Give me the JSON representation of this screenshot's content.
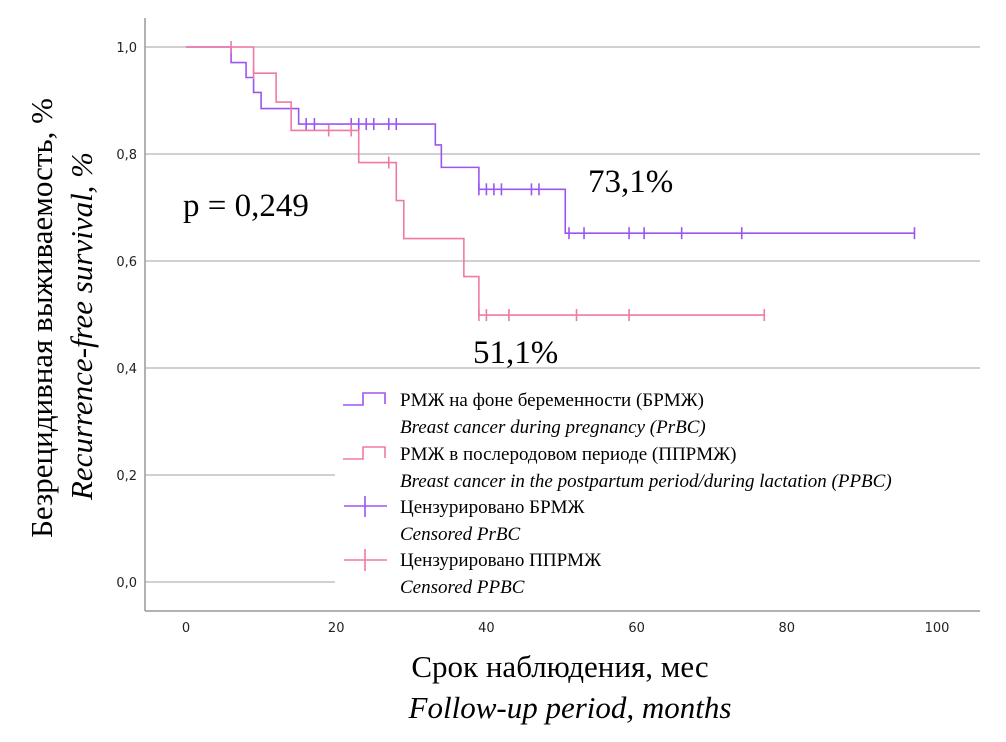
{
  "chart_data": {
    "type": "line",
    "subtype": "kaplan-meier step",
    "xlabel": "Срок наблюдения, мес",
    "xlabel_en": "Follow-up period, months",
    "ylabel": "Безрецидивная выживаемость, %",
    "ylabel_en": "Recurrence-free survival, %",
    "xlim": [
      -5,
      105
    ],
    "ylim": [
      -0.05,
      1.05
    ],
    "x_ticks": [
      0,
      20,
      40,
      60,
      80,
      100
    ],
    "x_tick_labels": [
      "0",
      "20",
      "40",
      "60",
      "80",
      "100"
    ],
    "y_ticks": [
      0,
      0.2,
      0.4,
      0.6,
      0.8,
      1.0
    ],
    "y_tick_labels": [
      "0,0",
      "0,2",
      "0,4",
      "0,6",
      "0,8",
      "1,0"
    ],
    "grid": "horizontal",
    "legend_position": "bottom-center",
    "annotations": {
      "p_value": "p = 0,249",
      "prbc_label": "73,1%",
      "ppbc_label": "51,1%"
    },
    "series": [
      {
        "name": "РМЖ на фоне беременности (БРМЖ)",
        "name_en": "Breast cancer during pregnancy (PrBC)",
        "censor_name": "Цензурировано БРМЖ",
        "censor_name_en": "Censored PrBC",
        "color": "#9d55f2",
        "steps": [
          [
            0,
            1.0
          ],
          [
            6,
            0.971
          ],
          [
            8,
            0.943
          ],
          [
            9,
            0.915
          ],
          [
            10,
            0.885
          ],
          [
            15,
            0.856
          ],
          [
            33.2,
            0.817
          ],
          [
            34,
            0.775
          ],
          [
            39,
            0.734
          ],
          [
            50.5,
            0.652
          ]
        ],
        "end": 97,
        "censored": [
          16,
          17.1,
          22,
          23,
          24,
          25,
          27,
          28,
          39,
          40,
          41,
          42,
          46,
          47,
          51,
          53,
          59,
          61,
          66,
          74,
          97
        ]
      },
      {
        "name": "РМЖ в послеродовом периоде (ППРМЖ)",
        "name_en": "Breast cancer in the postpartum period/during lactation (PPBC)",
        "censor_name": "Цензурировано ППРМЖ",
        "censor_name_en": "Censored PPBC",
        "color": "#f07aa5",
        "steps": [
          [
            0,
            1.0
          ],
          [
            9,
            0.951
          ],
          [
            12,
            0.897
          ],
          [
            14,
            0.844
          ],
          [
            23,
            0.784
          ],
          [
            28,
            0.713
          ],
          [
            29,
            0.642
          ],
          [
            37,
            0.571
          ],
          [
            39,
            0.499
          ]
        ],
        "end": 77,
        "censored": [
          6,
          9,
          19,
          22,
          27,
          39,
          40,
          43,
          52,
          59,
          77
        ]
      }
    ]
  }
}
